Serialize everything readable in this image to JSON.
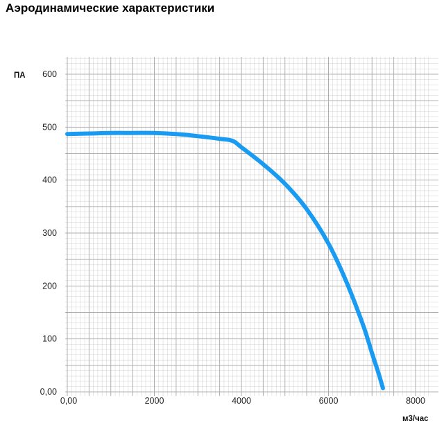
{
  "page": {
    "title": "Аэродинамические характеристики"
  },
  "chart_data": {
    "type": "line",
    "title": "Аэродинамические характеристики",
    "xlabel": "м3/час",
    "ylabel": "ПА",
    "xlim": [
      0,
      8000
    ],
    "ylim": [
      0,
      600
    ],
    "x_ticks": [
      0,
      2000,
      4000,
      6000,
      8000
    ],
    "x_tick_labels": [
      "0,00",
      "2000",
      "4000",
      "6000",
      "8000"
    ],
    "y_ticks": [
      0,
      100,
      200,
      300,
      400,
      500,
      600
    ],
    "y_tick_labels": [
      "0,00",
      "100",
      "200",
      "300",
      "400",
      "500",
      "600"
    ],
    "grid": true,
    "legend": "none",
    "line_color": "#1a9bf2",
    "grid_color": "#aaaaaa",
    "series": [
      {
        "x": [
          0,
          500,
          1000,
          1500,
          2000,
          2500,
          3000,
          3500,
          3800,
          4000,
          4500,
          5000,
          5500,
          6000,
          6400,
          6800,
          7000,
          7150,
          7250
        ],
        "y": [
          487,
          488,
          489,
          489,
          489,
          487,
          483,
          478,
          474,
          462,
          430,
          393,
          345,
          280,
          210,
          125,
          73,
          35,
          7
        ]
      }
    ]
  }
}
